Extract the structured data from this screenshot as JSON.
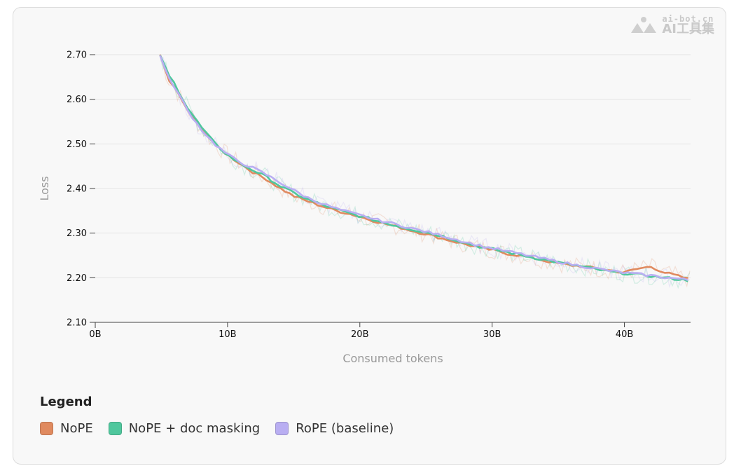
{
  "watermark": {
    "url": "ai-bot.cn",
    "name": "AI工具集"
  },
  "legend": {
    "title": "Legend",
    "items": [
      {
        "label": "NoPE",
        "color": "#e08a5f"
      },
      {
        "label": "NoPE + doc masking",
        "color": "#4fc79d"
      },
      {
        "label": "RoPE (baseline)",
        "color": "#b9aef2"
      }
    ]
  },
  "chart_data": {
    "type": "line",
    "xlabel": "Consumed tokens",
    "ylabel": "Loss",
    "xlim": [
      0,
      45
    ],
    "ylim": [
      2.1,
      2.7
    ],
    "x_ticks": [
      0,
      10,
      20,
      30,
      40
    ],
    "x_tick_labels": [
      "0B",
      "10B",
      "20B",
      "30B",
      "40B"
    ],
    "y_ticks": [
      2.1,
      2.2,
      2.3,
      2.4,
      2.5,
      2.6,
      2.7
    ],
    "y_tick_labels": [
      "2.10",
      "2.20",
      "2.30",
      "2.40",
      "2.50",
      "2.60",
      "2.70"
    ],
    "grid": "horizontal",
    "raw_curves_shown_faded": true,
    "x": [
      4.9,
      5.5,
      6,
      7,
      8,
      9,
      10,
      11,
      12,
      13,
      14,
      15,
      16,
      17,
      18,
      19,
      20,
      21,
      22,
      23,
      24,
      25,
      26,
      27,
      28,
      29,
      30,
      31,
      32,
      33,
      34,
      35,
      36,
      37,
      38,
      39,
      40,
      41,
      42,
      43,
      44,
      45
    ],
    "series": [
      {
        "name": "NoPE",
        "color": "#e08a5f",
        "values": [
          2.7,
          2.645,
          2.625,
          2.575,
          2.535,
          2.5,
          2.475,
          2.455,
          2.435,
          2.42,
          2.4,
          2.383,
          2.372,
          2.362,
          2.352,
          2.345,
          2.337,
          2.328,
          2.32,
          2.313,
          2.305,
          2.298,
          2.29,
          2.282,
          2.275,
          2.268,
          2.262,
          2.255,
          2.25,
          2.245,
          2.238,
          2.232,
          2.228,
          2.225,
          2.22,
          2.216,
          2.212,
          2.22,
          2.225,
          2.212,
          2.204,
          2.196
        ]
      },
      {
        "name": "NoPE + doc masking",
        "color": "#4fc79d",
        "values": [
          2.7,
          2.655,
          2.635,
          2.58,
          2.538,
          2.502,
          2.475,
          2.455,
          2.44,
          2.425,
          2.405,
          2.39,
          2.376,
          2.365,
          2.355,
          2.346,
          2.338,
          2.33,
          2.322,
          2.315,
          2.308,
          2.302,
          2.295,
          2.287,
          2.278,
          2.27,
          2.264,
          2.258,
          2.252,
          2.246,
          2.24,
          2.234,
          2.229,
          2.224,
          2.218,
          2.213,
          2.21,
          2.207,
          2.204,
          2.2,
          2.197,
          2.193
        ]
      },
      {
        "name": "RoPE (baseline)",
        "color": "#b9aef2",
        "values": [
          2.7,
          2.648,
          2.628,
          2.574,
          2.533,
          2.5,
          2.476,
          2.458,
          2.445,
          2.43,
          2.413,
          2.396,
          2.38,
          2.368,
          2.357,
          2.348,
          2.34,
          2.332,
          2.325,
          2.318,
          2.31,
          2.303,
          2.296,
          2.288,
          2.28,
          2.272,
          2.266,
          2.26,
          2.254,
          2.248,
          2.242,
          2.236,
          2.23,
          2.225,
          2.22,
          2.215,
          2.211,
          2.208,
          2.205,
          2.201,
          2.198,
          2.194
        ]
      }
    ]
  }
}
